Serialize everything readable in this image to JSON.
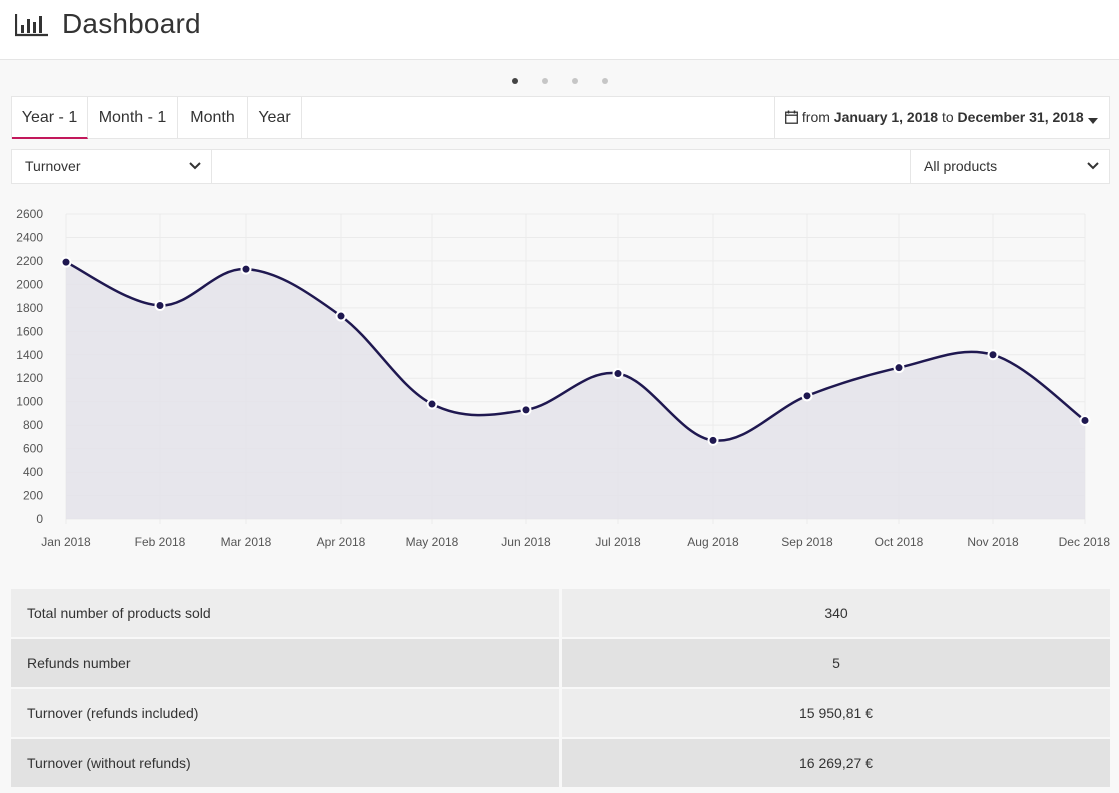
{
  "header": {
    "title": "Dashboard",
    "icon": "bar-chart-icon"
  },
  "carousel": {
    "dots": 4,
    "active_index": 0
  },
  "tabs": [
    {
      "label": "Year - 1",
      "active": true
    },
    {
      "label": "Month - 1",
      "active": false
    },
    {
      "label": "Month",
      "active": false
    },
    {
      "label": "Year",
      "active": false
    }
  ],
  "date_range": {
    "icon": "calendar-icon",
    "from_word": "from",
    "from": "January 1, 2018",
    "to_word": "to",
    "to": "December 31, 2018"
  },
  "filters": {
    "metric": "Turnover",
    "product": "All products"
  },
  "colors": {
    "accent": "#c2185b",
    "line": "#1f1850",
    "area": "#e4e3ea"
  },
  "chart_data": {
    "type": "area",
    "categories": [
      "Jan 2018",
      "Feb 2018",
      "Mar 2018",
      "Apr 2018",
      "May 2018",
      "Jun 2018",
      "Jul 2018",
      "Aug 2018",
      "Sep 2018",
      "Oct 2018",
      "Nov 2018",
      "Dec 2018"
    ],
    "values": [
      2190,
      1820,
      2130,
      1730,
      980,
      930,
      1240,
      670,
      1050,
      1290,
      1400,
      840
    ],
    "ylim": [
      0,
      2600
    ],
    "yticks": [
      0,
      200,
      400,
      600,
      800,
      1000,
      1200,
      1400,
      1600,
      1800,
      2000,
      2200,
      2400,
      2600
    ],
    "grid": true
  },
  "stats": [
    {
      "label": "Total number of products sold",
      "value": "340"
    },
    {
      "label": "Refunds number",
      "value": "5"
    },
    {
      "label": "Turnover (refunds included)",
      "value": "15 950,81 €"
    },
    {
      "label": "Turnover (without refunds)",
      "value": "16 269,27 €"
    }
  ]
}
